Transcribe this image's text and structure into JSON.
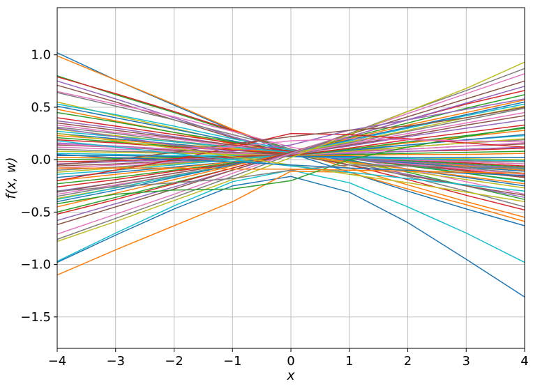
{
  "chart_data": {
    "type": "line",
    "title": "",
    "xlabel": "x",
    "ylabel": "f(x, w)",
    "xlim": [
      -4,
      4
    ],
    "ylim": [
      -1.8,
      1.45
    ],
    "grid": true,
    "legend": "none",
    "xticks": [
      "−4",
      "−3",
      "−2",
      "−1",
      "0",
      "1",
      "2",
      "3",
      "4"
    ],
    "yticks": [
      "−1.5",
      "−1.0",
      "−0.5",
      "0.0",
      "0.5",
      "1.0"
    ],
    "x": [
      -4,
      -3,
      -2,
      -1,
      0,
      1,
      2,
      3,
      4
    ],
    "colors": [
      "#1f77b4",
      "#ff7f0e",
      "#2ca02c",
      "#d62728",
      "#9467bd",
      "#8c564b",
      "#e377c2",
      "#7f7f7f",
      "#bcbd22",
      "#17becf"
    ],
    "series": [
      {
        "values": [
          1.02,
          0.76,
          0.52,
          0.28,
          0.06,
          -0.12,
          -0.3,
          -0.47,
          -0.63
        ]
      },
      {
        "values": [
          0.99,
          0.76,
          0.53,
          0.29,
          0.08,
          -0.08,
          -0.24,
          -0.4,
          -0.55
        ]
      },
      {
        "values": [
          0.8,
          0.62,
          0.45,
          0.27,
          0.1,
          0.0,
          -0.12,
          -0.25,
          -0.38
        ]
      },
      {
        "values": [
          0.79,
          0.63,
          0.46,
          0.28,
          0.08,
          -0.05,
          -0.19,
          -0.34,
          -0.48
        ]
      },
      {
        "values": [
          0.75,
          0.58,
          0.4,
          0.22,
          0.07,
          -0.03,
          -0.14,
          -0.25,
          -0.36
        ]
      },
      {
        "values": [
          0.71,
          0.55,
          0.38,
          0.21,
          0.05,
          -0.05,
          -0.15,
          -0.25,
          -0.34
        ]
      },
      {
        "values": [
          0.65,
          0.53,
          0.41,
          0.27,
          0.12,
          0.02,
          -0.09,
          -0.21,
          -0.33
        ]
      },
      {
        "values": [
          0.64,
          0.51,
          0.38,
          0.24,
          0.1,
          -0.02,
          -0.16,
          -0.3,
          -0.45
        ]
      },
      {
        "values": [
          0.55,
          0.42,
          0.3,
          0.17,
          0.05,
          -0.03,
          -0.11,
          -0.19,
          -0.27
        ]
      },
      {
        "values": [
          0.53,
          0.43,
          0.32,
          0.2,
          0.09,
          0.02,
          -0.05,
          -0.13,
          -0.21
        ]
      },
      {
        "values": [
          0.51,
          0.4,
          0.29,
          0.18,
          0.07,
          -0.01,
          -0.09,
          -0.17,
          -0.25
        ]
      },
      {
        "values": [
          0.48,
          0.37,
          0.26,
          0.15,
          0.05,
          -0.02,
          -0.09,
          -0.16,
          -0.23
        ]
      },
      {
        "values": [
          0.45,
          0.36,
          0.26,
          0.17,
          0.08,
          0.01,
          -0.06,
          -0.13,
          -0.2
        ]
      },
      {
        "values": [
          0.4,
          0.32,
          0.24,
          0.16,
          0.08,
          0.02,
          -0.04,
          -0.1,
          -0.16
        ]
      },
      {
        "values": [
          0.37,
          0.3,
          0.22,
          0.14,
          0.06,
          0.01,
          -0.05,
          -0.11,
          -0.17
        ]
      },
      {
        "values": [
          0.35,
          0.28,
          0.21,
          0.14,
          0.07,
          0.01,
          -0.05,
          -0.11,
          -0.17
        ]
      },
      {
        "values": [
          0.33,
          0.26,
          0.2,
          0.13,
          0.06,
          0.01,
          -0.04,
          -0.09,
          -0.14
        ]
      },
      {
        "values": [
          0.31,
          0.25,
          0.18,
          0.12,
          0.06,
          0.02,
          -0.03,
          -0.08,
          -0.13
        ]
      },
      {
        "values": [
          0.29,
          0.23,
          0.17,
          0.11,
          0.05,
          0.01,
          -0.03,
          -0.07,
          -0.11
        ]
      },
      {
        "values": [
          0.27,
          0.22,
          0.17,
          0.12,
          0.07,
          0.03,
          -0.01,
          -0.05,
          -0.09
        ]
      },
      {
        "values": [
          0.25,
          0.2,
          0.15,
          0.1,
          0.05,
          0.01,
          -0.03,
          -0.07,
          -0.11
        ]
      },
      {
        "values": [
          0.23,
          0.19,
          0.14,
          0.1,
          0.06,
          0.02,
          -0.02,
          -0.06,
          -0.1
        ]
      },
      {
        "values": [
          0.21,
          0.17,
          0.13,
          0.09,
          0.05,
          0.02,
          -0.01,
          -0.04,
          -0.07
        ]
      },
      {
        "values": [
          0.19,
          0.16,
          0.12,
          0.09,
          0.06,
          0.03,
          0.0,
          -0.03,
          -0.06
        ]
      },
      {
        "values": [
          0.16,
          0.13,
          0.1,
          0.07,
          0.04,
          0.01,
          -0.02,
          -0.05,
          -0.08
        ]
      },
      {
        "values": [
          0.14,
          0.12,
          0.09,
          0.07,
          0.05,
          0.02,
          0.0,
          -0.02,
          -0.04
        ]
      },
      {
        "values": [
          0.12,
          0.1,
          0.08,
          0.06,
          0.04,
          0.02,
          0.0,
          -0.02,
          -0.04
        ]
      },
      {
        "values": [
          0.1,
          0.08,
          0.07,
          0.05,
          0.04,
          0.02,
          0.01,
          -0.01,
          -0.02
        ]
      },
      {
        "values": [
          0.08,
          0.07,
          0.06,
          0.05,
          0.04,
          0.03,
          0.02,
          0.01,
          0.0
        ]
      },
      {
        "values": [
          0.06,
          0.05,
          0.04,
          0.04,
          0.03,
          0.02,
          0.01,
          0.0,
          -0.01
        ]
      },
      {
        "values": [
          0.04,
          0.04,
          0.03,
          0.03,
          0.03,
          0.03,
          0.02,
          0.02,
          0.02
        ]
      },
      {
        "values": [
          0.02,
          0.02,
          0.02,
          0.03,
          0.04,
          0.04,
          0.05,
          0.05,
          0.06
        ]
      },
      {
        "values": [
          0.0,
          0.01,
          0.02,
          0.03,
          0.04,
          0.05,
          0.06,
          0.07,
          0.08
        ]
      },
      {
        "values": [
          -0.02,
          -0.01,
          0.01,
          0.03,
          0.05,
          0.06,
          0.08,
          0.09,
          0.11
        ]
      },
      {
        "values": [
          -0.04,
          -0.02,
          0.0,
          0.02,
          0.04,
          0.06,
          0.08,
          0.1,
          0.12
        ]
      },
      {
        "values": [
          -0.06,
          -0.04,
          -0.01,
          0.02,
          0.05,
          0.08,
          0.1,
          0.13,
          0.15
        ]
      },
      {
        "values": [
          -0.08,
          -0.05,
          -0.02,
          0.01,
          0.04,
          0.07,
          0.1,
          0.13,
          0.16
        ]
      },
      {
        "values": [
          -0.1,
          -0.07,
          -0.03,
          0.01,
          0.05,
          0.09,
          0.12,
          0.16,
          0.19
        ]
      },
      {
        "values": [
          -0.12,
          -0.08,
          -0.04,
          0.0,
          0.04,
          0.08,
          0.12,
          0.16,
          0.2
        ]
      },
      {
        "values": [
          -0.14,
          -0.1,
          -0.05,
          0.0,
          0.05,
          0.1,
          0.14,
          0.19,
          0.23
        ]
      },
      {
        "values": [
          -0.17,
          -0.12,
          -0.07,
          -0.02,
          0.04,
          0.09,
          0.14,
          0.19,
          0.24
        ]
      },
      {
        "values": [
          -0.2,
          -0.14,
          -0.08,
          -0.02,
          0.04,
          0.1,
          0.16,
          0.22,
          0.28
        ]
      },
      {
        "values": [
          -0.23,
          -0.17,
          -0.1,
          -0.03,
          0.04,
          0.1,
          0.17,
          0.23,
          0.3
        ]
      },
      {
        "values": [
          -0.26,
          -0.19,
          -0.11,
          -0.04,
          0.04,
          0.11,
          0.19,
          0.26,
          0.33
        ]
      },
      {
        "values": [
          -0.3,
          -0.22,
          -0.13,
          -0.04,
          0.05,
          0.13,
          0.22,
          0.3,
          0.38
        ]
      },
      {
        "values": [
          -0.31,
          -0.22,
          -0.13,
          -0.04,
          0.05,
          0.14,
          0.23,
          0.33,
          0.42
        ]
      },
      {
        "values": [
          -0.33,
          -0.24,
          -0.15,
          -0.05,
          0.05,
          0.15,
          0.25,
          0.35,
          0.45
        ]
      },
      {
        "values": [
          -0.35,
          -0.25,
          -0.15,
          -0.05,
          0.06,
          0.16,
          0.27,
          0.38,
          0.49
        ]
      },
      {
        "values": [
          -0.37,
          -0.27,
          -0.16,
          -0.05,
          0.06,
          0.17,
          0.28,
          0.4,
          0.51
        ]
      },
      {
        "values": [
          -0.38,
          -0.27,
          -0.16,
          -0.05,
          0.07,
          0.18,
          0.3,
          0.42,
          0.53
        ]
      },
      {
        "values": [
          -0.4,
          -0.29,
          -0.17,
          -0.05,
          0.07,
          0.19,
          0.31,
          0.43,
          0.55
        ]
      },
      {
        "values": [
          -0.45,
          -0.32,
          -0.19,
          -0.06,
          0.07,
          0.2,
          0.33,
          0.45,
          0.57
        ]
      },
      {
        "values": [
          -0.5,
          -0.36,
          -0.22,
          -0.08,
          0.07,
          0.21,
          0.35,
          0.49,
          0.62
        ]
      },
      {
        "values": [
          -0.52,
          -0.38,
          -0.23,
          -0.08,
          0.07,
          0.22,
          0.38,
          0.53,
          0.66
        ]
      },
      {
        "values": [
          -0.58,
          -0.42,
          -0.26,
          -0.1,
          0.06,
          0.22,
          0.38,
          0.54,
          0.7
        ]
      },
      {
        "values": [
          -0.62,
          -0.45,
          -0.28,
          -0.1,
          0.07,
          0.24,
          0.41,
          0.58,
          0.75
        ]
      },
      {
        "values": [
          -0.71,
          -0.52,
          -0.33,
          -0.13,
          0.06,
          0.25,
          0.44,
          0.63,
          0.82
        ]
      },
      {
        "values": [
          -0.76,
          -0.56,
          -0.36,
          -0.16,
          0.05,
          0.25,
          0.46,
          0.66,
          0.87
        ]
      },
      {
        "values": [
          -0.78,
          -0.59,
          -0.39,
          -0.19,
          0.02,
          0.24,
          0.46,
          0.68,
          0.93
        ]
      },
      {
        "values": [
          -0.97,
          -0.7,
          -0.44,
          -0.21,
          -0.1,
          -0.22,
          -0.45,
          -0.7,
          -0.98
        ]
      },
      {
        "values": [
          -0.98,
          -0.72,
          -0.47,
          -0.25,
          -0.16,
          -0.31,
          -0.6,
          -0.95,
          -1.31
        ]
      },
      {
        "values": [
          -1.1,
          -0.86,
          -0.63,
          -0.4,
          -0.11,
          -0.12,
          -0.28,
          -0.43,
          -0.59
        ]
      },
      {
        "values": [
          -0.42,
          -0.33,
          -0.29,
          -0.28,
          -0.2,
          0.0,
          0.12,
          0.22,
          0.31
        ]
      },
      {
        "values": [
          -0.2,
          -0.1,
          0.0,
          0.12,
          0.25,
          0.24,
          0.2,
          0.16,
          0.12
        ]
      },
      {
        "values": [
          0.3,
          0.22,
          0.14,
          0.08,
          0.14,
          0.28,
          0.38,
          0.48,
          0.58
        ]
      },
      {
        "values": [
          -0.05,
          0.0,
          0.07,
          0.15,
          0.22,
          0.28,
          0.32,
          0.4,
          0.5
        ]
      },
      {
        "values": [
          0.15,
          0.12,
          0.1,
          0.12,
          0.18,
          0.2,
          0.19,
          0.18,
          0.17
        ]
      },
      {
        "values": [
          -0.3,
          -0.26,
          -0.22,
          -0.18,
          -0.1,
          -0.05,
          -0.06,
          -0.07,
          -0.08
        ]
      },
      {
        "values": [
          0.25,
          0.18,
          0.11,
          0.03,
          -0.05,
          -0.14,
          -0.22,
          -0.31,
          -0.4
        ]
      },
      {
        "values": [
          0.18,
          0.12,
          0.06,
          0.0,
          -0.06,
          -0.12,
          -0.18,
          -0.24,
          -0.3
        ]
      },
      {
        "values": [
          0.05,
          0.02,
          0.0,
          -0.02,
          -0.05,
          -0.08,
          -0.1,
          -0.13,
          -0.15
        ]
      },
      {
        "values": [
          -0.08,
          -0.08,
          -0.08,
          -0.09,
          -0.09,
          -0.1,
          -0.11,
          -0.12,
          -0.13
        ]
      }
    ]
  }
}
